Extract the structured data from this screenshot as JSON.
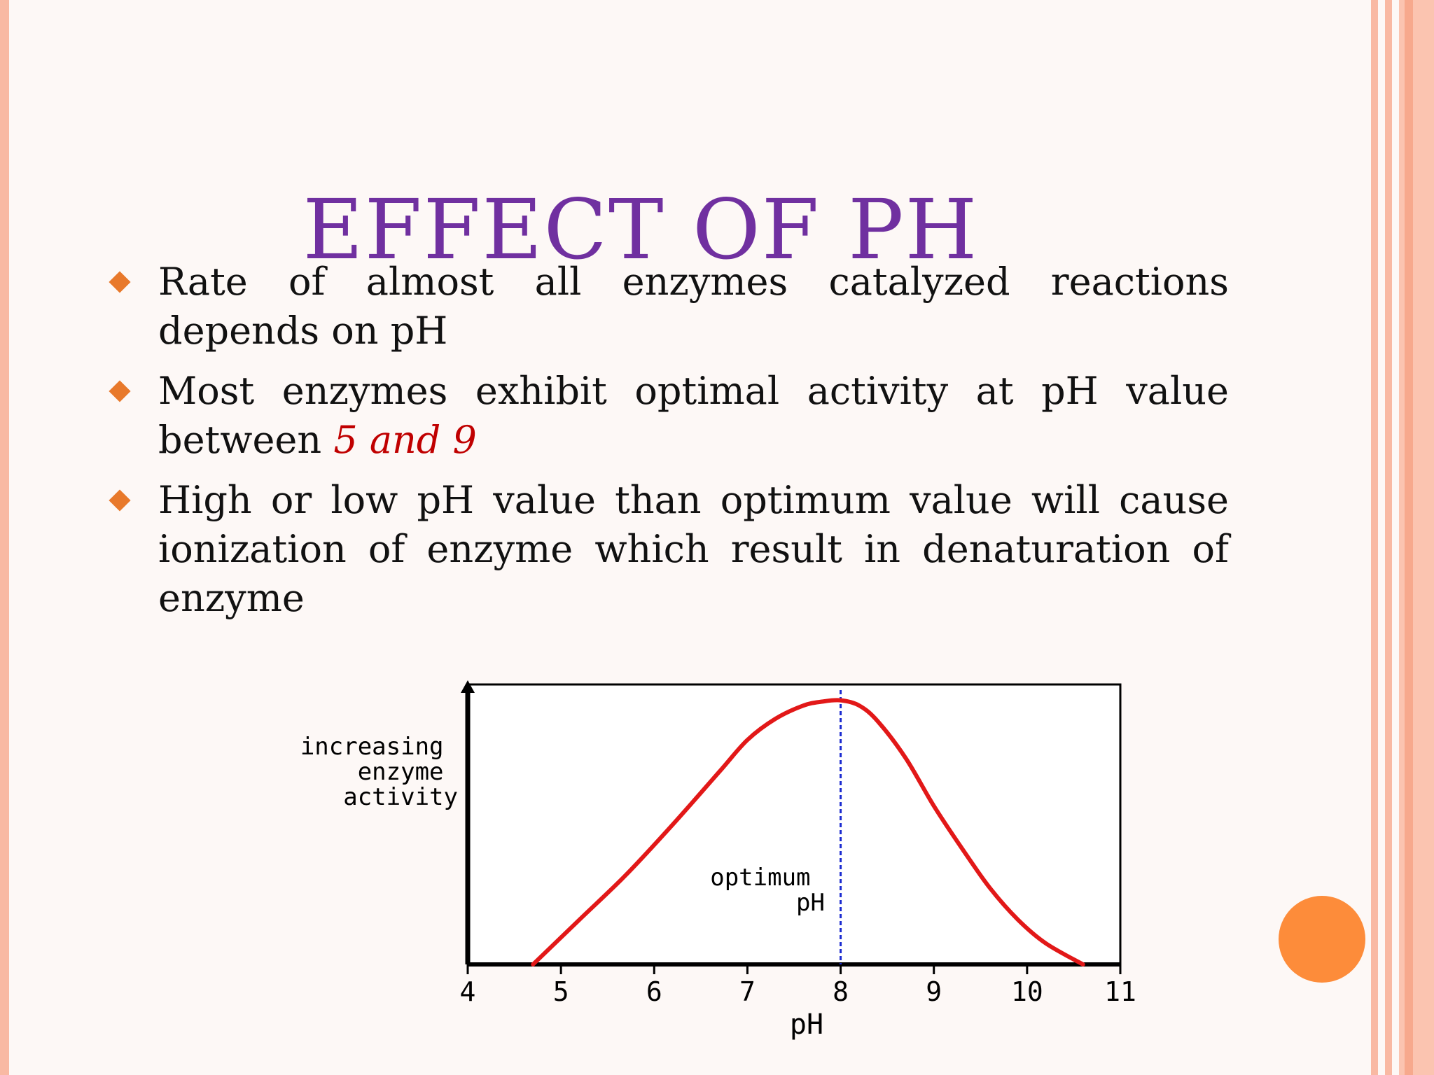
{
  "slide": {
    "title": "EFFECT OF PH",
    "bullets": [
      {
        "text": "Rate of almost all enzymes catalyzed reactions depends on pH"
      },
      {
        "text_before": "Most enzymes exhibit optimal activity at pH value between ",
        "highlight": "5 and 9"
      },
      {
        "text": "High or low pH value than optimum value will cause ionization of enzyme which result in denaturation of enzyme"
      }
    ]
  },
  "colors": {
    "title": "#7030a0",
    "highlight": "#c00000",
    "bullet_marker": "#e8792b",
    "curve": "#e21818",
    "optimum_line": "#1a2ad0",
    "accent_dot": "#fd8c3a"
  },
  "chart_data": {
    "type": "line",
    "xlabel": "pH",
    "ylabel_lines": [
      "increasing",
      "enzyme",
      "activity"
    ],
    "x_ticks": [
      "4",
      "5",
      "6",
      "7",
      "8",
      "9",
      "10",
      "11"
    ],
    "xlim": [
      4,
      11
    ],
    "ylim": [
      0,
      1.06
    ],
    "annotation_lines": [
      "optimum",
      "pH"
    ],
    "optimum_x": 8,
    "series": [
      {
        "x": [
          4.7,
          5.2,
          5.7,
          6.2,
          6.7,
          7.0,
          7.3,
          7.6,
          7.8,
          8.0,
          8.2,
          8.4,
          8.7,
          9.0,
          9.3,
          9.6,
          9.9,
          10.2,
          10.6
        ],
        "y": [
          0.0,
          0.17,
          0.34,
          0.53,
          0.73,
          0.85,
          0.93,
          0.98,
          0.995,
          1.0,
          0.98,
          0.92,
          0.78,
          0.6,
          0.44,
          0.29,
          0.17,
          0.08,
          0.0
        ]
      }
    ]
  }
}
